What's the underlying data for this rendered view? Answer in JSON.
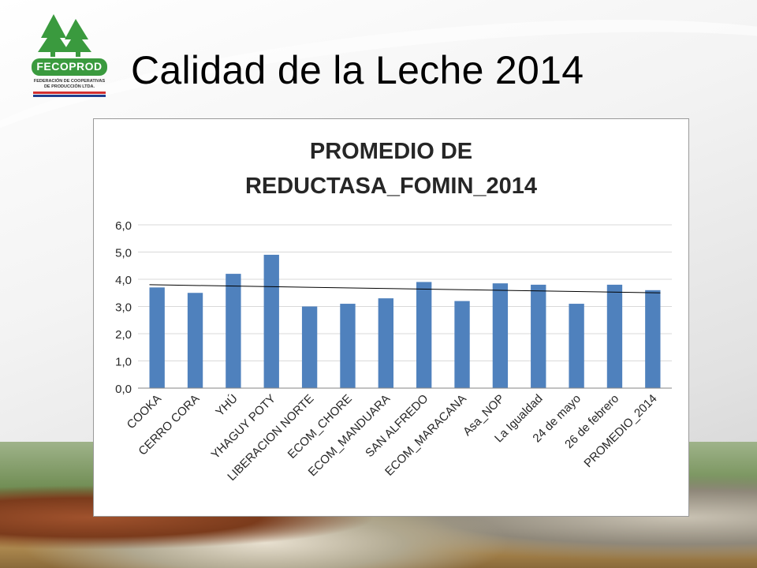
{
  "slide": {
    "title": "Calidad de la Leche 2014",
    "logo": {
      "name": "FECOPROD",
      "subtitle_line1": "FEDERACIÓN DE COOPERATIVAS",
      "subtitle_line2": "DE PRODUCCIÓN LTDA.",
      "colors": {
        "green": "#3a9a3e",
        "red": "#d32f2f",
        "blue": "#1f3f8f"
      }
    }
  },
  "chart_data": {
    "type": "bar",
    "title_line1": "PROMEDIO DE",
    "title_line2": "REDUCTASA_FOMIN_2014",
    "categories": [
      "COOKA",
      "CERRO CORA",
      "YHÚ",
      "YHAGUY POTY",
      "LIBERACION NORTE",
      "ECOM_CHORE",
      "ECOM_MANDUARA",
      "SAN ALFREDO",
      "ECOM_MARACANA",
      "Asa_NOP",
      "La Igualdad",
      "24 de mayo",
      "26 de febrero",
      "PROMEDIO_2014"
    ],
    "values": [
      3.7,
      3.5,
      4.2,
      4.9,
      3.0,
      3.1,
      3.3,
      3.9,
      3.2,
      3.85,
      3.8,
      3.1,
      3.8,
      3.6
    ],
    "ylim": [
      0,
      6
    ],
    "yticks": [
      "0,0",
      "1,0",
      "2,0",
      "3,0",
      "4,0",
      "5,0",
      "6,0"
    ],
    "grid": true,
    "trendline": {
      "start": 3.8,
      "end": 3.5
    },
    "bar_color": "#4f81bd",
    "trend_color": "#000000"
  }
}
